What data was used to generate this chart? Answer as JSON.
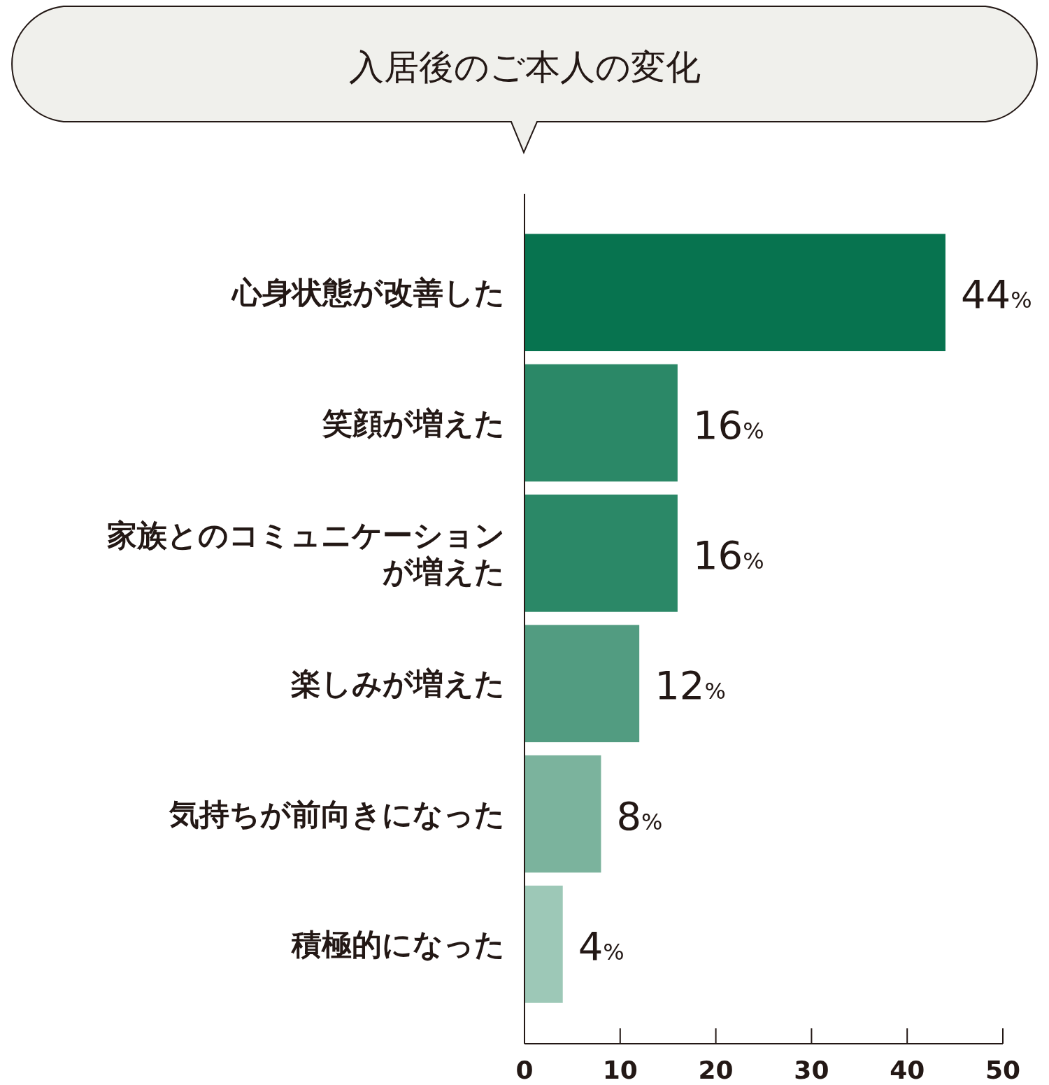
{
  "chart_data": {
    "type": "bar",
    "orientation": "horizontal",
    "title": "入居後のご本人の変化",
    "categories": [
      "心身状態が改善した",
      "笑顔が増えた",
      "家族とのコミュニケーションが増えた",
      "楽しみが増えた",
      "気持ちが前向きになった",
      "積極的になった"
    ],
    "values": [
      44,
      16,
      16,
      12,
      8,
      4
    ],
    "colors": [
      "#07734f",
      "#2b8867",
      "#2b8867",
      "#529c81",
      "#7bb39d",
      "#9dc8b7"
    ],
    "value_labels": [
      "44%",
      "16%",
      "16%",
      "12%",
      "8%",
      "4%"
    ],
    "xlim": [
      0,
      50
    ],
    "xticks": [
      0,
      10,
      20,
      30,
      40,
      50
    ],
    "grid": false
  }
}
